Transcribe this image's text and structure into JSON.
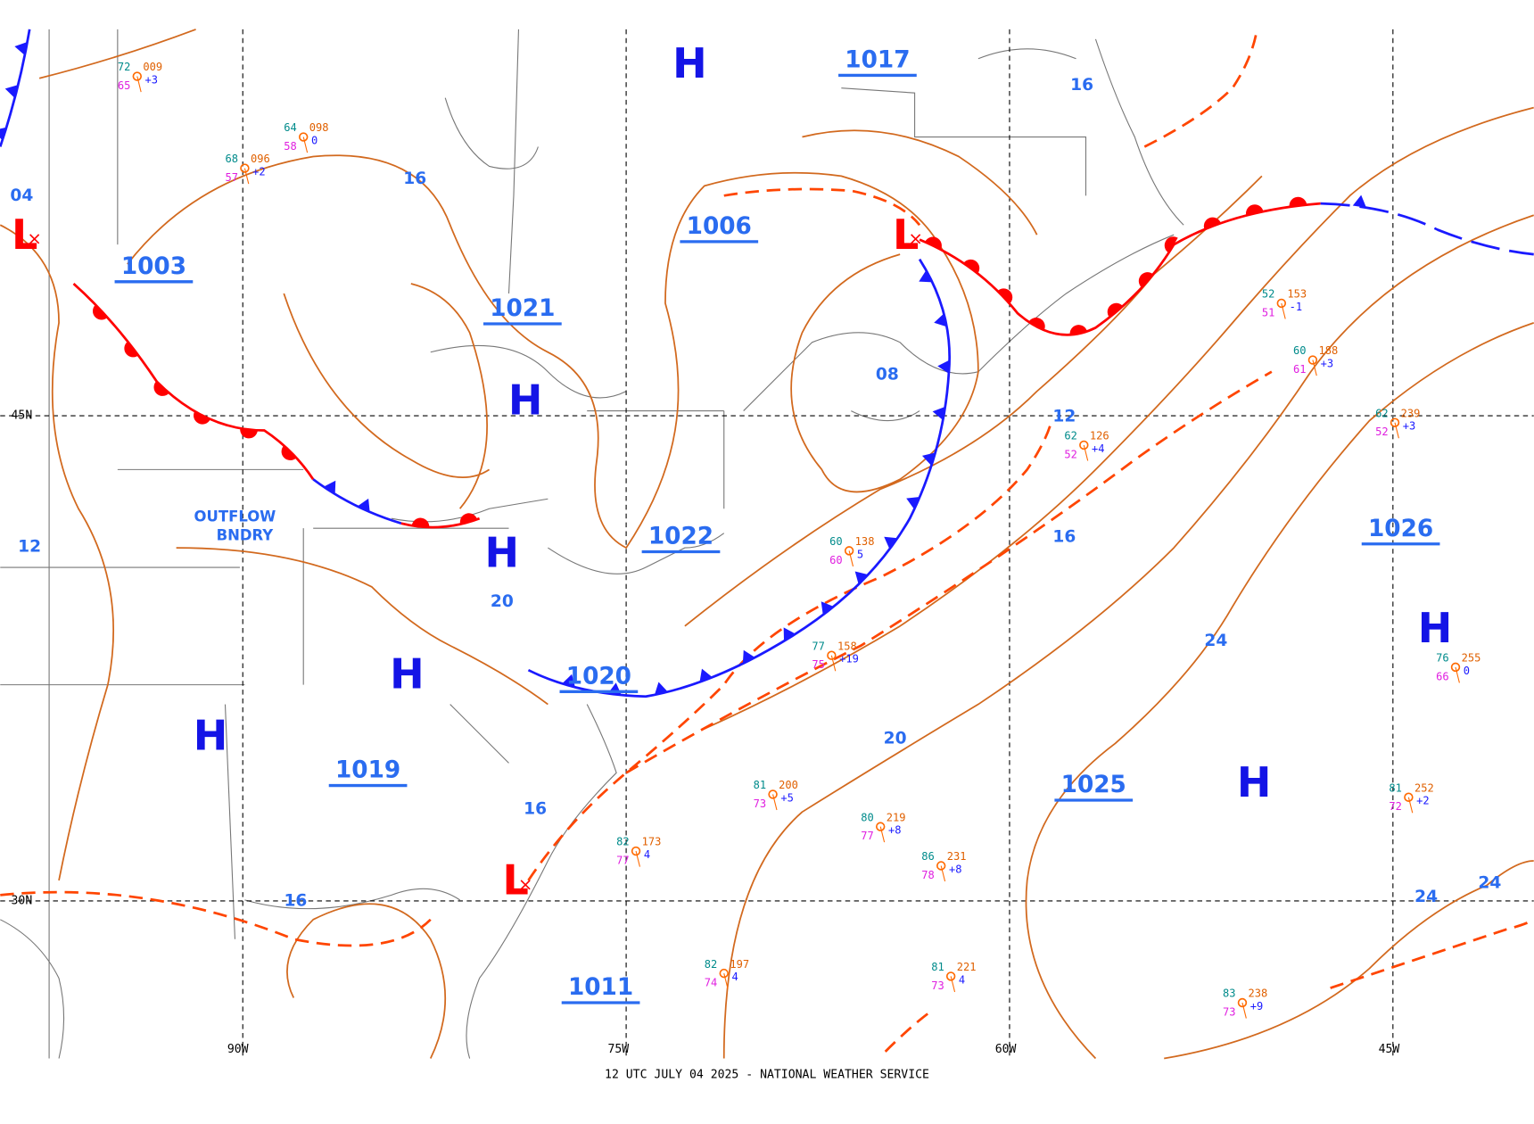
{
  "pressure_centers": [
    {
      "symbol": "H",
      "pressure": "1017"
    },
    {
      "symbol": "H",
      "pressure": "1021"
    },
    {
      "symbol": "H",
      "pressure": "1022"
    },
    {
      "symbol": "H",
      "pressure": "1020"
    },
    {
      "symbol": "H",
      "pressure": "1019"
    },
    {
      "symbol": "L",
      "pressure": "1006"
    },
    {
      "symbol": "L",
      "pressure": "1003"
    },
    {
      "symbol": "L",
      "pressure": "1011"
    },
    {
      "symbol": "H",
      "pressure": "1026"
    },
    {
      "symbol": "H",
      "pressure": "1025"
    }
  ],
  "isobar_labels": [
    "16",
    "04",
    "16",
    "08",
    "12",
    "16",
    "20",
    "12",
    "24",
    "20",
    "16",
    "16",
    "24",
    "24"
  ],
  "grid_labels": [
    "90W",
    "75W",
    "60W",
    "45W",
    "45N",
    "30N"
  ],
  "annotation": {
    "line1": "OUTFLOW",
    "line2": "BNDRY"
  },
  "stations": [
    {
      "temp": "72",
      "dew": "65",
      "pressure": "009",
      "tendency": "+3"
    },
    {
      "temp": "68",
      "dew": "57",
      "pressure": "096",
      "tendency": "+2"
    },
    {
      "temp": "64",
      "dew": "58",
      "pressure": "098",
      "tendency": "0"
    },
    {
      "temp": "80",
      "dew": "77",
      "pressure": "219",
      "tendency": "+8"
    },
    {
      "temp": "81",
      "dew": "72",
      "pressure": "252",
      "tendency": "+2"
    },
    {
      "temp": "76",
      "dew": "66",
      "pressure": "255",
      "tendency": "0"
    },
    {
      "temp": "83",
      "dew": "73",
      "pressure": "238",
      "tendency": "+9"
    },
    {
      "temp": "86",
      "dew": "78",
      "pressure": "231",
      "tendency": "+8"
    },
    {
      "temp": "62",
      "dew": "52",
      "pressure": "126",
      "tendency": "+4"
    },
    {
      "temp": "62",
      "dew": "52",
      "pressure": "239",
      "tendency": "+3"
    },
    {
      "temp": "52",
      "dew": "51",
      "pressure": "153",
      "tendency": "-1"
    },
    {
      "temp": "60",
      "dew": "61",
      "pressure": "188",
      "tendency": "+3"
    },
    {
      "temp": "60",
      "dew": "60",
      "pressure": "138",
      "tendency": "5"
    },
    {
      "temp": "81",
      "dew": "73",
      "pressure": "200",
      "tendency": "+5"
    },
    {
      "temp": "82",
      "dew": "74",
      "pressure": "197",
      "tendency": "4"
    },
    {
      "temp": "81",
      "dew": "73",
      "pressure": "221",
      "tendency": "4"
    },
    {
      "temp": "82",
      "dew": "77",
      "pressure": "173",
      "tendency": "4"
    },
    {
      "temp": "77",
      "dew": "75",
      "pressure": "158",
      "tendency": "+19"
    }
  ],
  "footer": "12 UTC JULY 04 2025 - NATIONAL WEATHER SERVICE"
}
